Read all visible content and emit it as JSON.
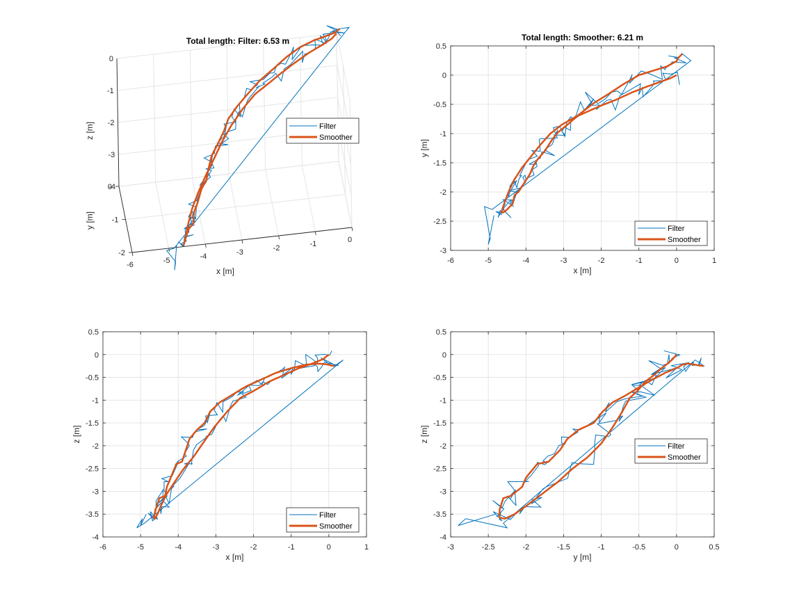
{
  "figure": {
    "background": "#ffffff"
  },
  "colors": {
    "filter": "#0072BD",
    "smoother": "#D95319",
    "grid": "#e5e5e5",
    "axis": "#262626"
  },
  "chart_data": [
    {
      "id": "xyz",
      "type": "line",
      "projection": "3d",
      "title": "Total length: Filter: 6.53 m",
      "xlabel": "x [m]",
      "ylabel": "y [m]",
      "zlabel": "z [m]",
      "xlim": [
        -6,
        0
      ],
      "ylim": [
        -2,
        0
      ],
      "zlim": [
        -4,
        0
      ],
      "xticks": [
        "-6",
        "-5",
        "-4",
        "-3",
        "-2",
        "-1",
        "0"
      ],
      "yticks": [
        "0",
        "-1",
        "-2"
      ],
      "zticks": [
        "0",
        "-1",
        "-2",
        "-3",
        "-4"
      ],
      "grid": true,
      "legend": {
        "entries": [
          "Filter",
          "Smoother"
        ],
        "location": "east"
      },
      "series": [
        {
          "name": "Filter",
          "x": [
            0,
            -0.4,
            -0.9,
            -1.3,
            -1.6,
            -2.0,
            -2.3,
            -2.7,
            -3.0,
            -3.4,
            -3.7,
            -3.9,
            -4.1,
            -4.3,
            -4.5,
            -4.6,
            -4.7,
            -4.9,
            -5.1,
            -5.3,
            -5.2,
            -4.9,
            -4.7,
            -4.5,
            -4.2,
            -3.9,
            -3.6,
            -3.3,
            -2.9,
            -2.5,
            -2.1,
            -1.7,
            -1.3,
            -0.8,
            -0.3,
            0
          ],
          "y": [
            0,
            -0.05,
            -0.1,
            -0.15,
            -0.2,
            -0.3,
            -0.4,
            -0.5,
            -0.6,
            -0.75,
            -0.9,
            -1.05,
            -1.2,
            -1.4,
            -1.6,
            -1.8,
            -2.0,
            -2.2,
            -2.4,
            -2.6,
            -2.3,
            -2.2,
            -2.0,
            -1.8,
            -1.6,
            -1.4,
            -1.2,
            -1.0,
            -0.8,
            -0.6,
            -0.45,
            -0.35,
            -0.2,
            -0.1,
            -0.05,
            0.3
          ],
          "z": [
            0,
            -0.3,
            -0.35,
            -0.4,
            -0.55,
            -0.6,
            -0.75,
            -0.9,
            -1.1,
            -1.2,
            -1.5,
            -1.9,
            -2.3,
            -2.6,
            -2.9,
            -3.2,
            -3.4,
            -3.6,
            -3.75,
            -3.8,
            -3.5,
            -3.3,
            -3.0,
            -2.6,
            -2.3,
            -1.9,
            -1.6,
            -1.4,
            -1.1,
            -0.9,
            -0.7,
            -0.5,
            -0.35,
            -0.25,
            -0.2,
            -0.2
          ]
        },
        {
          "name": "Smoother",
          "x": [
            0,
            -0.4,
            -0.9,
            -1.3,
            -1.7,
            -2.1,
            -2.5,
            -2.9,
            -3.3,
            -3.6,
            -3.9,
            -4.1,
            -4.3,
            -4.5,
            -4.6,
            -4.6,
            -4.5,
            -4.3,
            -4.3,
            -4.1,
            -3.9,
            -3.8,
            -3.5,
            -3.1,
            -2.9,
            -2.5,
            -2.1,
            -1.7,
            -1.3,
            -0.9,
            -0.4,
            0.1
          ],
          "y": [
            0,
            -0.1,
            -0.2,
            -0.3,
            -0.4,
            -0.5,
            -0.65,
            -0.8,
            -0.95,
            -1.1,
            -1.3,
            -1.5,
            -1.75,
            -2.0,
            -2.25,
            -2.35,
            -2.3,
            -2.15,
            -2.0,
            -1.75,
            -1.55,
            -1.4,
            -1.2,
            -1.0,
            -0.8,
            -0.6,
            -0.45,
            -0.25,
            -0.05,
            0.1,
            0.2,
            0.35
          ],
          "z": [
            0,
            -0.2,
            -0.35,
            -0.5,
            -0.65,
            -0.85,
            -0.95,
            -1.2,
            -1.5,
            -1.8,
            -2.1,
            -2.5,
            -2.8,
            -3.2,
            -3.5,
            -3.6,
            -3.5,
            -3.3,
            -3.1,
            -2.8,
            -2.4,
            -2.1,
            -1.8,
            -1.6,
            -1.3,
            -1.0,
            -0.8,
            -0.65,
            -0.45,
            -0.3,
            -0.25,
            -0.25
          ]
        }
      ]
    },
    {
      "id": "xy",
      "type": "line",
      "title": "Total length: Smoother: 6.21 m",
      "xlabel": "x [m]",
      "ylabel": "y [m]",
      "xlim": [
        -6,
        1
      ],
      "ylim": [
        -3,
        0.5
      ],
      "xticks": [
        -6,
        -5,
        -4,
        -3,
        -2,
        -1,
        0,
        1
      ],
      "yticks": [
        0.5,
        0,
        -0.5,
        -1,
        -1.5,
        -2,
        -2.5,
        -3
      ],
      "grid": true,
      "legend": {
        "entries": [
          "Filter",
          "Smoother"
        ],
        "location": "bottom-right"
      }
    },
    {
      "id": "xz",
      "type": "line",
      "title": "",
      "xlabel": "x [m]",
      "ylabel": "z [m]",
      "xlim": [
        -6,
        1
      ],
      "ylim": [
        -4,
        0.5
      ],
      "xticks": [
        -6,
        -5,
        -4,
        -3,
        -2,
        -1,
        0,
        1
      ],
      "yticks": [
        0.5,
        0,
        -0.5,
        -1,
        -1.5,
        -2,
        -2.5,
        -3,
        -3.5,
        -4
      ],
      "grid": true,
      "legend": {
        "entries": [
          "Filter",
          "Smoother"
        ],
        "location": "bottom-right"
      }
    },
    {
      "id": "yz",
      "type": "line",
      "title": "",
      "xlabel": "y [m]",
      "ylabel": "z [m]",
      "xlim": [
        -3,
        0.5
      ],
      "ylim": [
        -4,
        0.5
      ],
      "xticks": [
        -3,
        -2.5,
        -2,
        -1.5,
        -1,
        -0.5,
        0,
        0.5
      ],
      "yticks": [
        0.5,
        0,
        -0.5,
        -1,
        -1.5,
        -2,
        -2.5,
        -3,
        -3.5,
        -4
      ],
      "grid": true,
      "legend": {
        "entries": [
          "Filter",
          "Smoother"
        ],
        "location": "east"
      }
    }
  ],
  "trajectory": {
    "smoother": {
      "x": [
        0.0,
        -0.15,
        -0.45,
        -0.8,
        -1.2,
        -1.6,
        -2.0,
        -2.35,
        -2.7,
        -3.05,
        -3.35,
        -3.6,
        -3.85,
        -4.1,
        -4.3,
        -4.45,
        -4.55,
        -4.62,
        -4.65,
        -4.6,
        -4.5,
        -4.35,
        -4.3,
        -4.2,
        -4.05,
        -3.9,
        -3.8,
        -3.7,
        -3.5,
        -3.3,
        -3.15,
        -2.9,
        -2.6,
        -2.2,
        -1.8,
        -1.4,
        -1.0,
        -0.6,
        -0.25,
        0.0,
        0.05,
        0.15
      ],
      "y": [
        0.0,
        -0.05,
        -0.12,
        -0.2,
        -0.3,
        -0.42,
        -0.52,
        -0.62,
        -0.72,
        -0.85,
        -1.0,
        -1.18,
        -1.38,
        -1.58,
        -1.78,
        -1.98,
        -2.15,
        -2.28,
        -2.35,
        -2.35,
        -2.3,
        -2.2,
        -2.05,
        -2.0,
        -1.85,
        -1.7,
        -1.55,
        -1.45,
        -1.3,
        -1.1,
        -0.98,
        -0.85,
        -0.68,
        -0.48,
        -0.32,
        -0.15,
        0.0,
        0.08,
        0.15,
        0.24,
        0.3,
        0.36
      ],
      "z": [
        0.0,
        -0.1,
        -0.2,
        -0.3,
        -0.45,
        -0.6,
        -0.8,
        -0.95,
        -1.25,
        -1.6,
        -1.95,
        -2.25,
        -2.5,
        -2.8,
        -3.05,
        -3.3,
        -3.5,
        -3.6,
        -3.58,
        -3.4,
        -3.15,
        -3.1,
        -2.9,
        -2.7,
        -2.4,
        -2.35,
        -2.1,
        -1.85,
        -1.65,
        -1.5,
        -1.25,
        -1.05,
        -0.9,
        -0.7,
        -0.55,
        -0.4,
        -0.3,
        -0.22,
        -0.2,
        -0.22,
        -0.24,
        -0.25
      ]
    },
    "smoother_xy_upper_x": [
      -4.6,
      -4.55,
      -4.4,
      -4.2,
      -4.05,
      -3.8,
      -3.5,
      -3.2,
      -2.9,
      -2.6,
      -2.35,
      -2.0,
      -1.6,
      -1.3,
      -1.0,
      -0.6,
      -0.2,
      0.15
    ],
    "smoother_xy_upper_y": [
      -2.25,
      -1.9,
      -1.7,
      -1.4,
      -1.3,
      -1.1,
      -0.98,
      -0.85,
      -0.65,
      -0.45,
      -0.36,
      -0.25,
      -0.05,
      0.02,
      0.0,
      0.12,
      0.24,
      0.36
    ],
    "smoother_xy_lower_x": [
      -4.55,
      -4.4,
      -4.3,
      -4.15,
      -4.0,
      -3.85,
      -3.7,
      -3.5,
      -3.2,
      -2.9,
      -2.6,
      -2.2,
      -1.8,
      -1.4,
      -1.0,
      -0.5,
      0.0
    ],
    "smoother_xy_lower_y": [
      -2.35,
      -2.3,
      -2.1,
      -2.0,
      -1.8,
      -1.55,
      -1.5,
      -1.3,
      -1.0,
      -0.85,
      -0.7,
      -0.58,
      -0.45,
      -0.3,
      -0.15,
      -0.05,
      0.0
    ]
  }
}
